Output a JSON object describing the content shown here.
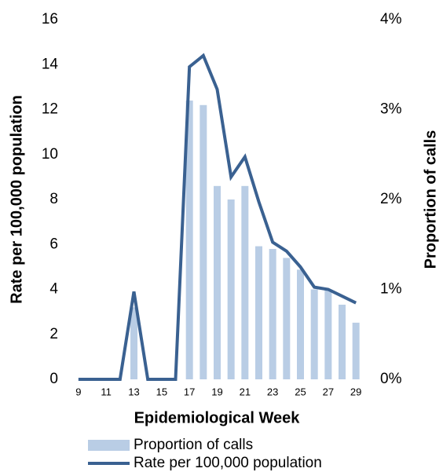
{
  "chart_data": {
    "type": "combo",
    "x_label": "Epidemiological Week",
    "y_label": "Rate per 100,000 population",
    "y2_label": "Proportion of calls",
    "categories": [
      "9",
      null,
      "11",
      null,
      "13",
      null,
      "15",
      null,
      "17",
      null,
      "19",
      null,
      "21",
      null,
      "23",
      null,
      "25",
      null,
      "27",
      null,
      "29"
    ],
    "series": [
      {
        "name": "Proportion of calls",
        "type": "bar",
        "axis": "y2",
        "color": "#b9cde5",
        "values": [
          0,
          0,
          0,
          0,
          0.8,
          0,
          0,
          0,
          3.1,
          3.05,
          2.15,
          2.0,
          2.15,
          1.48,
          1.45,
          1.35,
          1.22,
          1.0,
          1.0,
          0.83,
          0.63
        ]
      },
      {
        "name": "Rate per 100,000 population",
        "type": "line",
        "axis": "y",
        "color": "#3a6191",
        "values": [
          0,
          0,
          0,
          0,
          3.9,
          0,
          0,
          0,
          13.9,
          14.4,
          12.9,
          9.0,
          9.9,
          7.9,
          6.1,
          5.7,
          5.0,
          4.1,
          4.0,
          3.7,
          3.4
        ]
      }
    ],
    "ylim": [
      0,
      16
    ],
    "yticks": [
      0,
      2,
      4,
      6,
      8,
      10,
      12,
      14,
      16
    ],
    "y2lim": [
      0,
      4
    ],
    "y2ticks": [
      {
        "value": 0,
        "label": "0%"
      },
      {
        "value": 1,
        "label": "1%"
      },
      {
        "value": 2,
        "label": "2%"
      },
      {
        "value": 3,
        "label": "3%"
      },
      {
        "value": 4,
        "label": "4%"
      }
    ],
    "grid": false
  }
}
